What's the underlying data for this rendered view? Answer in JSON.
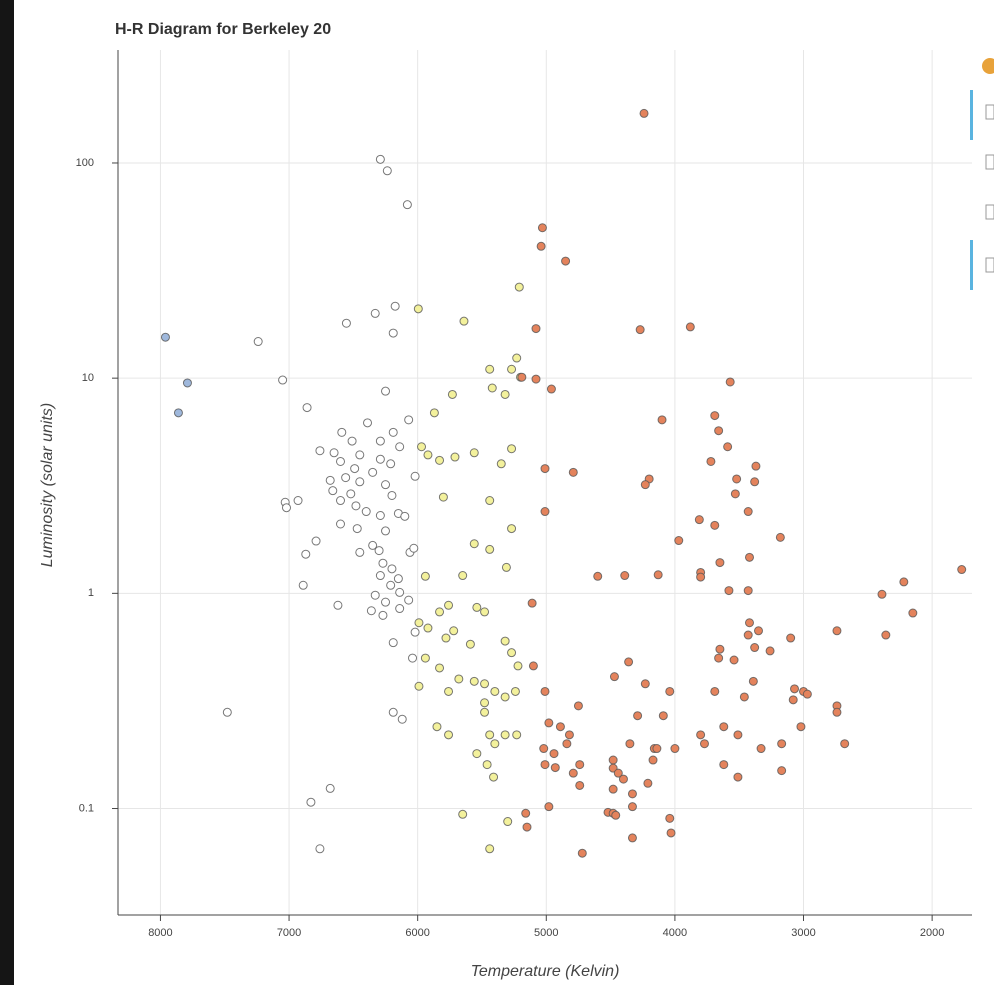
{
  "chart_data": {
    "type": "scatter",
    "title": "H-R Diagram for Berkeley 20",
    "x_label": "Temperature (Kelvin)",
    "y_label": "Luminosity (solar units)",
    "xlim": [
      8330,
      1690
    ],
    "ylim": [
      0.032,
      335
    ],
    "yscale": "log",
    "grid": true,
    "xticks": [
      8000,
      7000,
      6000,
      5000,
      4000,
      3000,
      2000
    ],
    "yticks": [
      0.1,
      1,
      10,
      100
    ],
    "series": [
      {
        "color": "#9fb8dc",
        "x": [
          7961,
          7790,
          7860
        ],
        "values": [
          15.5,
          9.5,
          6.9
        ]
      },
      {
        "color": "#ffffff",
        "x": [
          6290,
          6236,
          6080,
          6330,
          6175,
          6554,
          6190,
          7240,
          7050,
          6250,
          6860,
          6070,
          6390,
          6590,
          6190,
          6510,
          6290,
          6140,
          6760,
          6650,
          6450,
          6290,
          6600,
          6210,
          6490,
          6350,
          6560,
          6680,
          6450,
          6020,
          6250,
          6660,
          6520,
          6600,
          6200,
          6930,
          7030,
          7020,
          6480,
          6400,
          6290,
          6150,
          6100,
          6600,
          6470,
          6790,
          6250,
          6870,
          6350,
          6300,
          6060,
          6030,
          6450,
          6270,
          6200,
          6290,
          6150,
          6890,
          6210,
          6140,
          6330,
          6250,
          6070,
          6620,
          6360,
          6140,
          6270,
          6190,
          6020,
          6040,
          7480,
          6190,
          6120,
          6830,
          6680,
          6760
        ],
        "values": [
          104,
          92,
          64,
          20,
          21.6,
          18,
          16.2,
          14.8,
          9.8,
          8.7,
          7.3,
          6.4,
          6.2,
          5.6,
          5.6,
          5.1,
          5.1,
          4.8,
          4.6,
          4.5,
          4.4,
          4.2,
          4.1,
          4.0,
          3.8,
          3.65,
          3.45,
          3.35,
          3.3,
          3.5,
          3.2,
          3.0,
          2.9,
          2.7,
          2.85,
          2.7,
          2.65,
          2.5,
          2.55,
          2.4,
          2.3,
          2.35,
          2.28,
          2.1,
          2.0,
          1.75,
          1.95,
          1.52,
          1.67,
          1.58,
          1.55,
          1.62,
          1.55,
          1.38,
          1.3,
          1.21,
          1.17,
          1.09,
          1.09,
          1.01,
          0.98,
          0.91,
          0.93,
          0.88,
          0.83,
          0.85,
          0.79,
          0.59,
          0.66,
          0.5,
          0.28,
          0.28,
          0.26,
          0.107,
          0.124,
          0.065
        ]
      },
      {
        "color": "#f3f19c",
        "x": [
          5995,
          5640,
          5210,
          5230,
          5270,
          5440,
          5420,
          5320,
          5730,
          5200,
          5870,
          5970,
          5920,
          5830,
          5710,
          5560,
          5270,
          5350,
          5440,
          5800,
          5270,
          5560,
          5440,
          5310,
          5650,
          5940,
          5760,
          5540,
          5830,
          5480,
          5990,
          5920,
          5720,
          5780,
          5590,
          5320,
          5270,
          5940,
          5830,
          5220,
          5680,
          5560,
          5480,
          5990,
          5760,
          5400,
          5320,
          5240,
          5480,
          5480,
          5850,
          5760,
          5440,
          5320,
          5230,
          5400,
          5540,
          5460,
          5410,
          5650,
          5300,
          5440
        ],
        "values": [
          21,
          18.4,
          26.5,
          12.4,
          11,
          11,
          9,
          8.4,
          8.4,
          10.1,
          6.9,
          4.8,
          4.4,
          4.15,
          4.3,
          4.5,
          4.7,
          4.0,
          2.7,
          2.8,
          2.0,
          1.7,
          1.6,
          1.32,
          1.21,
          1.2,
          0.88,
          0.86,
          0.82,
          0.82,
          0.73,
          0.69,
          0.67,
          0.62,
          0.58,
          0.6,
          0.53,
          0.5,
          0.45,
          0.46,
          0.4,
          0.39,
          0.38,
          0.37,
          0.35,
          0.35,
          0.33,
          0.35,
          0.31,
          0.28,
          0.24,
          0.22,
          0.22,
          0.22,
          0.22,
          0.2,
          0.18,
          0.16,
          0.14,
          0.094,
          0.087,
          0.065
        ]
      },
      {
        "color": "#e4835c",
        "x": [
          4240,
          5030,
          5040,
          4850,
          5080,
          4270,
          3880,
          3570,
          5190,
          5080,
          4960,
          4100,
          3690,
          3660,
          3590,
          5010,
          4790,
          3720,
          3370,
          3520,
          3380,
          4200,
          4230,
          3530,
          3430,
          5010,
          3810,
          3690,
          3180,
          3970,
          3650,
          3420,
          3800,
          3800,
          4600,
          4390,
          4130,
          3580,
          3430,
          2390,
          2220,
          1770,
          2150,
          5110,
          2360,
          2740,
          3420,
          3430,
          3350,
          3100,
          3380,
          3260,
          3650,
          3660,
          3540,
          4360,
          5100,
          5010,
          4470,
          4230,
          4040,
          3690,
          3390,
          3460,
          3070,
          3000,
          3080,
          2970,
          2740,
          2740,
          4750,
          4290,
          4090,
          3620,
          3020,
          4980,
          4890,
          4820,
          4160,
          4000,
          3800,
          3510,
          3330,
          3170,
          2680,
          5020,
          4940,
          4840,
          4350,
          4140,
          3770,
          5010,
          4930,
          4740,
          4480,
          4170,
          3620,
          4480,
          4440,
          4790,
          4400,
          3170,
          3510,
          4740,
          4480,
          4210,
          4330,
          4520,
          4480,
          4460,
          4330,
          4980,
          5160,
          4040,
          5150,
          4030,
          4330,
          4720
        ],
        "values": [
          170,
          50,
          41,
          35,
          17,
          16.8,
          17.3,
          9.6,
          10.1,
          9.9,
          8.9,
          6.4,
          6.7,
          5.7,
          4.8,
          3.8,
          3.65,
          4.1,
          3.9,
          3.4,
          3.3,
          3.4,
          3.2,
          2.9,
          2.4,
          2.4,
          2.2,
          2.07,
          1.82,
          1.76,
          1.39,
          1.47,
          1.25,
          1.19,
          1.2,
          1.21,
          1.22,
          1.03,
          1.03,
          0.99,
          1.13,
          1.29,
          0.81,
          0.9,
          0.64,
          0.67,
          0.73,
          0.64,
          0.67,
          0.62,
          0.56,
          0.54,
          0.55,
          0.5,
          0.49,
          0.48,
          0.46,
          0.35,
          0.41,
          0.38,
          0.35,
          0.35,
          0.39,
          0.33,
          0.36,
          0.35,
          0.32,
          0.34,
          0.3,
          0.28,
          0.3,
          0.27,
          0.27,
          0.24,
          0.24,
          0.25,
          0.24,
          0.22,
          0.19,
          0.19,
          0.22,
          0.22,
          0.19,
          0.2,
          0.2,
          0.19,
          0.18,
          0.2,
          0.2,
          0.19,
          0.2,
          0.16,
          0.155,
          0.16,
          0.168,
          0.168,
          0.16,
          0.154,
          0.146,
          0.146,
          0.137,
          0.15,
          0.14,
          0.128,
          0.123,
          0.131,
          0.117,
          0.096,
          0.095,
          0.093,
          0.102,
          0.102,
          0.095,
          0.09,
          0.082,
          0.077,
          0.073,
          0.062
        ]
      }
    ]
  }
}
